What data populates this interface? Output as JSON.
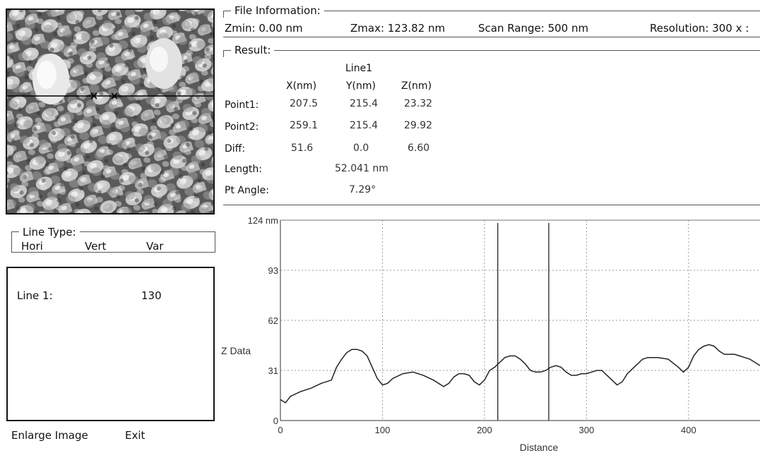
{
  "file_info": {
    "legend": "File Information:",
    "zmin": "Zmin: 0.00 nm",
    "zmax": "Zmax: 123.82 nm",
    "scan_range": "Scan Range:  500 nm",
    "resolution": "Resolution:  300 x :"
  },
  "result": {
    "legend": "Result:",
    "line_header": "Line1",
    "col_x": "X(nm)",
    "col_y": "Y(nm)",
    "col_z": "Z(nm)",
    "rows": [
      {
        "label": "Point1:",
        "x": "207.5",
        "y": "215.4",
        "z": "23.32"
      },
      {
        "label": "Point2:",
        "x": "259.1",
        "y": "215.4",
        "z": "29.92"
      },
      {
        "label": "Diff:",
        "x": "51.6",
        "y": "0.0",
        "z": "6.60"
      }
    ],
    "length_label": "Length:",
    "length_value": "52.041 nm",
    "angle_label": "Pt Angle:",
    "angle_value": "7.29°"
  },
  "line_type": {
    "legend": "Line Type:",
    "options": [
      "Hori",
      "Vert",
      "Var"
    ]
  },
  "line_list": {
    "label": "Line 1:",
    "value": "130"
  },
  "buttons": {
    "enlarge": "Enlarge Image",
    "exit": "Exit"
  },
  "chart_data": {
    "type": "line",
    "xlabel": "Distance",
    "ylabel": "Z Data",
    "xlim": [
      0,
      470
    ],
    "ylim": [
      0,
      124
    ],
    "x_ticks": [
      "0",
      "100",
      "200",
      "300",
      "400"
    ],
    "y_ticks": [
      "0",
      "31",
      "62",
      "93",
      "124 nm"
    ],
    "y_tick_values": [
      0,
      31,
      62,
      93,
      124
    ],
    "x_tick_values": [
      0,
      100,
      200,
      300,
      400
    ],
    "cursor_x": [
      213,
      263
    ],
    "series": [
      {
        "x": [
          0,
          5,
          10,
          20,
          30,
          40,
          50,
          55,
          60,
          65,
          70,
          75,
          80,
          85,
          90,
          95,
          100,
          105,
          110,
          120,
          130,
          140,
          150,
          160,
          165,
          170,
          175,
          180,
          185,
          190,
          195,
          200,
          205,
          210,
          215,
          220,
          225,
          230,
          235,
          240,
          245,
          250,
          255,
          260,
          265,
          270,
          275,
          280,
          285,
          290,
          295,
          300,
          305,
          310,
          315,
          320,
          325,
          330,
          335,
          340,
          345,
          350,
          355,
          360,
          370,
          380,
          390,
          395,
          400,
          405,
          410,
          415,
          420,
          425,
          430,
          435,
          440,
          445,
          450,
          455,
          460,
          465,
          470
        ],
        "y": [
          13,
          11,
          15,
          18,
          20,
          23,
          25,
          33,
          38,
          42,
          44,
          44,
          43,
          40,
          33,
          26,
          22,
          23,
          26,
          29,
          30,
          28,
          25,
          21,
          23,
          27,
          29,
          29,
          28,
          24,
          22,
          25,
          31,
          33,
          36,
          39,
          40,
          40,
          38,
          35,
          31,
          30,
          30,
          31,
          33,
          34,
          33,
          30,
          28,
          28,
          29,
          29,
          30,
          31,
          31,
          28,
          25,
          22,
          24,
          29,
          32,
          35,
          38,
          39,
          39,
          38,
          33,
          30,
          33,
          40,
          44,
          46,
          47,
          46,
          43,
          41,
          41,
          41,
          40,
          39,
          38,
          36,
          34
        ]
      }
    ]
  }
}
